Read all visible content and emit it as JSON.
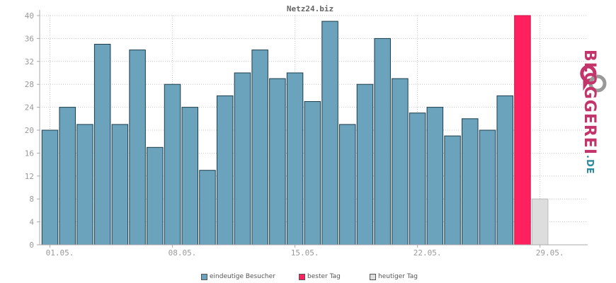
{
  "chart_data": {
    "type": "bar",
    "title": "Netz24.biz",
    "ylim": [
      0,
      40
    ],
    "yticks": [
      0,
      4,
      8,
      12,
      16,
      20,
      24,
      28,
      32,
      36,
      40
    ],
    "xticks": [
      {
        "index": 0,
        "label": "01.05."
      },
      {
        "index": 7,
        "label": "08.05."
      },
      {
        "index": 14,
        "label": "15.05."
      },
      {
        "index": 21,
        "label": "22.05."
      },
      {
        "index": 28,
        "label": "29.05."
      }
    ],
    "num_slots": 31,
    "series": [
      {
        "name": "eindeutige Besucher",
        "color": "#6aa3bb",
        "values": [
          20,
          24,
          21,
          35,
          21,
          34,
          17,
          28,
          24,
          13,
          26,
          30,
          34,
          29,
          30,
          25,
          39,
          21,
          28,
          36,
          29,
          23,
          24,
          19,
          22,
          20,
          26
        ]
      },
      {
        "name": "bester Tag",
        "color": "#ff2060",
        "index": 27,
        "values": [
          40
        ]
      },
      {
        "name": "heutiger Tag",
        "color": "#dddddd",
        "index": 28,
        "values": [
          8
        ]
      }
    ],
    "grid": true,
    "legend_position": "bottom"
  },
  "legend": {
    "visitors": "eindeutige Besucher",
    "best": "bester Tag",
    "today": "heutiger Tag"
  },
  "logo": {
    "text": "BLOGGEREI",
    "suffix": ".DE"
  }
}
